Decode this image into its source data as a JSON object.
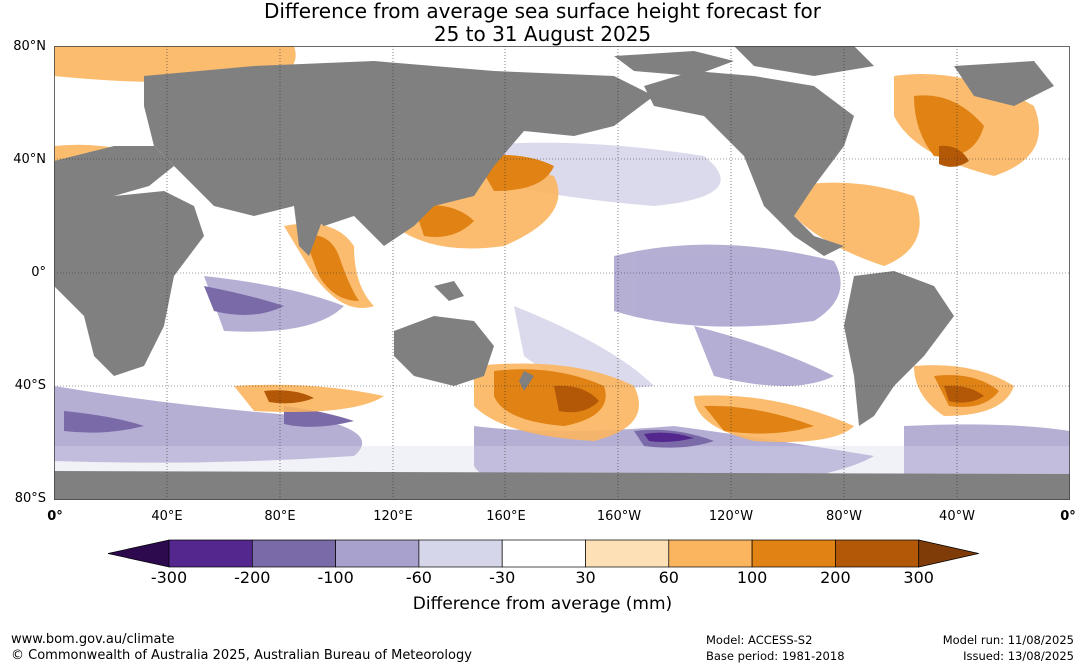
{
  "title": {
    "line1": "Difference from average sea surface height forecast for",
    "line2": "25 to 31 August 2025"
  },
  "map": {
    "lat_labels": [
      "80°N",
      "40°N",
      "0°",
      "40°S",
      "80°S"
    ],
    "lon_labels": [
      "0°",
      "40°E",
      "80°E",
      "120°E",
      "160°E",
      "160°W",
      "120°W",
      "80°W",
      "40°W",
      "0°"
    ],
    "land_color": "#808080",
    "ocean_background": "#ffffff"
  },
  "colorbar": {
    "title": "Difference from average (mm)",
    "ticks": [
      "-300",
      "-200",
      "-100",
      "-60",
      "-30",
      "30",
      "60",
      "100",
      "200",
      "300"
    ],
    "colors": [
      "#2d0a4e",
      "#54278f",
      "#7b6aa8",
      "#a9a1cd",
      "#d6d6ea",
      "#ffffff",
      "#fde0b5",
      "#fbb55f",
      "#e08214",
      "#b35806",
      "#7f3b08"
    ]
  },
  "footer": {
    "website": "www.bom.gov.au/climate",
    "copyright": "© Commonwealth of Australia 2025, Australian Bureau of Meteorology",
    "model": "Model: ACCESS-S2",
    "base_period": "Base period: 1981-2018",
    "model_run": "Model run: 11/08/2025",
    "issued": "Issued: 13/08/2025"
  }
}
